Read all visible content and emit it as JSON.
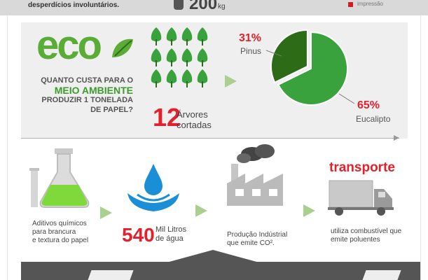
{
  "header": {
    "left_text": "desperdícios involuntários.",
    "amount": "200",
    "unit": "kg",
    "legend_label": "impressão"
  },
  "eco": {
    "logo_text": "eco",
    "question_line1": "QUANTO CUSTA PARA O",
    "question_highlight": "MEIO AMBIENTE",
    "question_line2": "PRODUZIR 1 TONELADA",
    "question_line3": "DE PAPEL?"
  },
  "trees": {
    "count": "12",
    "label_line1": "Árvores",
    "label_line2": "cortadas",
    "icon_rows": 3,
    "icon_cols": 4
  },
  "pie": {
    "slices": [
      {
        "label": "Pinus",
        "percent_text": "31%",
        "value": 31,
        "color": "#2e6b16"
      },
      {
        "label": "Eucalipto",
        "percent_text": "65%",
        "value": 65,
        "color": "#39a23c"
      }
    ]
  },
  "process": {
    "aditivos": {
      "icon": "flask-icon",
      "text_line1": "Aditivos químicos",
      "text_line2": "para brancura",
      "text_line3": "e textura do papel"
    },
    "water": {
      "icon": "water-drop-icon",
      "amount": "540",
      "label_line1": "Mil Litros",
      "label_line2": "de água"
    },
    "factory": {
      "icon": "factory-icon",
      "text_line1": "Produção Indústrial",
      "text_line2": "que emite CO²."
    },
    "transport": {
      "icon": "truck-icon",
      "title": "transporte",
      "text_line1": "utiliza combustível que",
      "text_line2": "emite poluentes"
    }
  },
  "colors": {
    "accent_red": "#e3202b",
    "eco_green": "#59ad36",
    "dark_green": "#2e6b16",
    "light_green": "#39a23c",
    "arrow_green": "#a9d08e",
    "water_blue": "#1b8fd6"
  }
}
